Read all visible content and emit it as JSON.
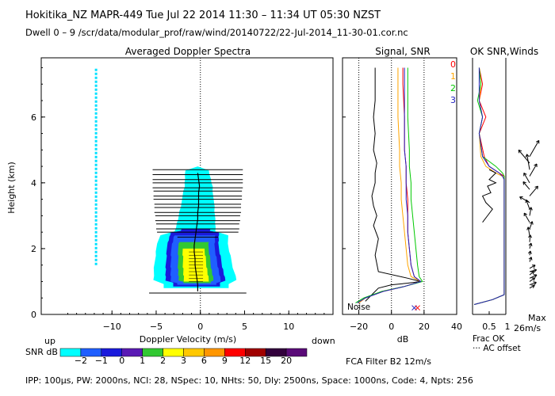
{
  "header": {
    "line1": "Hokitika_NZ   MAPR-449   Tue Jul 22 2014 11:30 – 11:34 UT 05:30 NZST",
    "line2": "Dwell   0  –   9    /scr/data/modular_prof/raw/wind/20140722/22-Jul-2014_11-30-01.cor.nc"
  },
  "footer": {
    "params": "IPP: 100μs,   PW: 2000ns,   NCI:  28,   NSpec: 10,  NHts: 50,   Dly: 2500ns,   Space: 1000ns,   Code: 4,   Npts: 256",
    "filter": "FCA Filter B2 12m/s"
  },
  "colorbar": {
    "label": "SNR dB",
    "ticks": [
      "−2",
      "−1",
      "0",
      "1",
      "2",
      "3",
      "6",
      "9",
      "12",
      "15",
      "20"
    ],
    "colors": [
      "#00ffff",
      "#1f5fff",
      "#1a1adc",
      "#5a1ab4",
      "#32c832",
      "#ffff00",
      "#ffc800",
      "#ff9600",
      "#ff0000",
      "#a00000",
      "#32003c",
      "#5a0a78"
    ]
  },
  "chart_data": [
    {
      "type": "heatmap",
      "title": "Averaged Doppler Spectra",
      "xlabel": "Doppler Velocity (m/s)",
      "ylabel": "Height (km)",
      "xlim": [
        -18,
        15
      ],
      "ylim": [
        0,
        7.8
      ],
      "xticks": [
        "−10",
        "−5",
        "0",
        "5",
        "10"
      ],
      "yticks": [
        "0",
        "2",
        "4",
        "6"
      ],
      "left_annotation": "up",
      "right_annotation": "down",
      "mean_velocity_profile": {
        "heights_km": [
          0.7,
          0.9,
          1.1,
          1.3,
          1.5,
          1.7,
          1.9,
          2.1,
          2.3,
          2.5,
          2.7,
          2.9,
          3.1,
          3.3,
          3.5,
          3.7,
          3.9,
          4.1,
          4.3
        ],
        "velocity_ms": [
          -0.3,
          -0.3,
          -0.4,
          -0.5,
          -0.6,
          -0.6,
          -0.7,
          -0.7,
          -0.6,
          -0.5,
          -0.4,
          -0.3,
          -0.3,
          -0.2,
          -0.2,
          -0.2,
          -0.1,
          -0.2,
          -0.3
        ]
      },
      "spread_bars": {
        "heights_km": [
          0.65,
          2.35,
          2.5,
          2.6,
          2.75,
          2.85,
          3.0,
          3.1,
          3.25,
          3.35,
          3.5,
          3.6,
          3.75,
          3.85,
          4.0,
          4.1,
          4.25,
          4.4
        ],
        "half_width_ms": [
          5.5,
          2.3,
          4.6,
          4.7,
          4.7,
          4.8,
          4.8,
          4.9,
          4.9,
          4.9,
          5.0,
          5.0,
          5.0,
          5.1,
          5.1,
          5.1,
          5.1,
          5.1
        ]
      },
      "ground_clutter_line": {
        "velocity_ms": -11.8,
        "height_range_km": [
          1.5,
          7.5
        ]
      }
    },
    {
      "type": "line",
      "title": "Signal, SNR",
      "xlabel": "dB",
      "xlim": [
        -30,
        40
      ],
      "xticks": [
        "−20",
        "0",
        "20",
        "40"
      ],
      "ylim": [
        0,
        7.8
      ],
      "annotation": "Noise",
      "legend": [
        "0",
        "1",
        "2",
        "3"
      ],
      "series": [
        {
          "name": "signal",
          "x": [
            -16,
            -13,
            -8,
            0,
            10,
            18,
            10,
            -8,
            -10,
            -8,
            -11,
            -9,
            -11,
            -12,
            -10,
            -10,
            -9,
            -11,
            -10,
            -11,
            -10,
            -10,
            -10
          ],
          "y": [
            0.4,
            0.55,
            0.8,
            0.9,
            0.95,
            1.0,
            1.1,
            1.3,
            1.8,
            2.3,
            2.7,
            3.0,
            3.3,
            3.6,
            4.0,
            4.3,
            4.6,
            5.0,
            5.5,
            6.0,
            6.5,
            7.0,
            7.5
          ]
        },
        {
          "name": "0",
          "x": [
            -20,
            -16,
            -5,
            8,
            18,
            14,
            12,
            11,
            10,
            10,
            10,
            9,
            9,
            8,
            8,
            7,
            7
          ],
          "y": [
            0.35,
            0.5,
            0.7,
            0.85,
            1.0,
            1.15,
            1.5,
            2.0,
            2.5,
            3.0,
            3.5,
            4.0,
            4.5,
            5.0,
            6.0,
            7.0,
            7.5
          ]
        },
        {
          "name": "1",
          "x": [
            -20,
            -16,
            -6,
            8,
            18,
            12,
            10,
            9,
            8,
            7,
            6,
            6,
            5,
            5,
            4,
            4,
            4
          ],
          "y": [
            0.35,
            0.5,
            0.7,
            0.85,
            1.0,
            1.15,
            1.5,
            2.0,
            2.5,
            3.0,
            3.5,
            4.0,
            4.5,
            5.0,
            6.0,
            7.0,
            7.5
          ]
        },
        {
          "name": "2",
          "x": [
            -22,
            -17,
            -6,
            8,
            19,
            17,
            16,
            15,
            14,
            13,
            12,
            12,
            11,
            11,
            10,
            10,
            10
          ],
          "y": [
            0.35,
            0.5,
            0.7,
            0.85,
            1.0,
            1.15,
            1.5,
            2.0,
            2.5,
            3.0,
            3.5,
            4.0,
            4.5,
            5.0,
            6.0,
            7.0,
            7.5
          ]
        },
        {
          "name": "3",
          "x": [
            -21,
            -16,
            -5,
            8,
            18,
            14,
            12,
            11,
            10,
            10,
            9,
            9,
            9,
            8,
            8,
            8,
            8
          ],
          "y": [
            0.35,
            0.5,
            0.7,
            0.85,
            1.0,
            1.15,
            1.5,
            2.0,
            2.5,
            3.0,
            3.5,
            4.0,
            4.5,
            5.0,
            6.0,
            7.0,
            7.5
          ]
        }
      ],
      "noise_markers_db": [
        14,
        16
      ]
    },
    {
      "type": "line",
      "title": "OK SNR,Winds",
      "xlabel": "Frac OK",
      "note": "··· AC offset",
      "max_label": "Max\n26m/s",
      "xlim": [
        0,
        1
      ],
      "xticks": [
        "0.5",
        "1"
      ],
      "ylim": [
        0,
        7.8
      ],
      "series": [
        {
          "name": "0",
          "x": [
            0.05,
            0.6,
            0.95,
            0.95,
            0.95,
            0.95,
            0.95,
            0.95,
            0.95,
            0.8,
            0.5,
            0.35,
            0.2,
            0.4,
            0.2,
            0.3,
            0.2
          ],
          "y": [
            0.3,
            0.45,
            0.6,
            1.5,
            2.5,
            3.5,
            3.9,
            4.1,
            4.2,
            4.3,
            4.5,
            4.8,
            5.5,
            6.0,
            6.5,
            7.0,
            7.5
          ]
        },
        {
          "name": "1",
          "x": [
            0.05,
            0.6,
            0.95,
            0.95,
            0.95,
            0.95,
            0.95,
            0.95,
            0.9,
            0.7,
            0.4,
            0.25,
            0.2,
            0.3,
            0.2,
            0.25,
            0.2
          ],
          "y": [
            0.3,
            0.45,
            0.6,
            1.5,
            2.5,
            3.5,
            3.9,
            4.1,
            4.2,
            4.3,
            4.5,
            4.8,
            5.5,
            6.0,
            6.5,
            7.0,
            7.5
          ]
        },
        {
          "name": "2",
          "x": [
            0.05,
            0.6,
            0.95,
            0.95,
            0.95,
            0.95,
            0.95,
            0.95,
            0.95,
            0.9,
            0.7,
            0.3,
            0.2,
            0.3,
            0.15,
            0.25,
            0.2
          ],
          "y": [
            0.3,
            0.45,
            0.6,
            1.5,
            2.5,
            3.5,
            3.9,
            4.1,
            4.2,
            4.3,
            4.5,
            4.8,
            5.5,
            6.0,
            6.5,
            7.0,
            7.5
          ]
        },
        {
          "name": "3",
          "x": [
            0.05,
            0.6,
            0.95,
            0.95,
            0.95,
            0.95,
            0.95,
            0.95,
            0.9,
            0.8,
            0.5,
            0.3,
            0.2,
            0.3,
            0.2,
            0.2,
            0.2
          ],
          "y": [
            0.3,
            0.45,
            0.6,
            1.5,
            2.5,
            3.5,
            3.9,
            4.1,
            4.2,
            4.3,
            4.5,
            4.8,
            5.5,
            6.0,
            6.5,
            7.0,
            7.5
          ]
        },
        {
          "name": "AC",
          "x": [
            0.3,
            0.45,
            0.6,
            0.4,
            0.3,
            0.55,
            0.45,
            0.7,
            0.5,
            0.6,
            0.7,
            0.5
          ],
          "y": [
            2.8,
            3.0,
            3.2,
            3.4,
            3.6,
            3.7,
            3.9,
            4.0,
            4.1,
            4.2,
            4.3,
            4.4
          ]
        }
      ],
      "wind_barbs": {
        "heights_km": [
          0.8,
          0.9,
          1.0,
          1.1,
          1.2,
          1.3,
          1.4,
          1.6,
          1.8,
          2.0,
          2.2,
          2.4,
          2.6,
          2.8,
          3.0,
          3.2,
          3.4,
          3.6,
          3.8,
          4.0,
          4.2,
          4.4,
          4.6,
          4.8
        ],
        "direction_deg": [
          60,
          70,
          55,
          65,
          50,
          75,
          60,
          20,
          10,
          15,
          5,
          350,
          20,
          330,
          10,
          340,
          300,
          40,
          320,
          330,
          30,
          350,
          320,
          30
        ],
        "speed_ms": [
          8,
          10,
          9,
          11,
          8,
          10,
          9,
          7,
          6,
          8,
          10,
          12,
          11,
          15,
          12,
          14,
          16,
          18,
          14,
          16,
          20,
          22,
          24,
          26
        ]
      }
    }
  ]
}
